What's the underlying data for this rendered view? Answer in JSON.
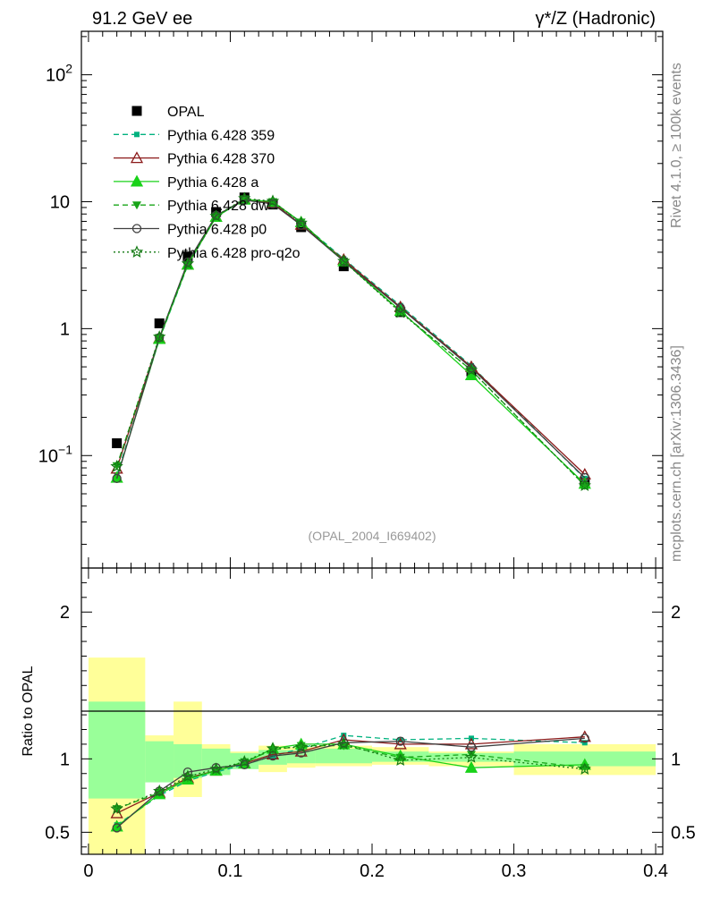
{
  "header": {
    "left_title": "91.2 GeV ee",
    "right_title": "γ*/Z (Hadronic)"
  },
  "side_labels": {
    "rivet": "Rivet 4.1.0, ≥ 100k events",
    "mcplots": "mcplots.cern.ch [arXiv:1306.3436]"
  },
  "chart_data": [
    {
      "type": "scatter",
      "panel": "main",
      "yscale": "log",
      "xlim": [
        -0.005,
        0.405
      ],
      "ylim": [
        0.013,
        220
      ],
      "analysis_label": "(OPAL_2004_I669402)",
      "legend_position": "top-left",
      "y_tick_labels": [
        "10^-1",
        "1",
        "10",
        "10^2"
      ],
      "x": [
        0.02,
        0.05,
        0.07,
        0.09,
        0.11,
        0.13,
        0.15,
        0.18,
        0.22,
        0.27,
        0.35
      ],
      "series": [
        {
          "name": "OPAL",
          "color": "#000000",
          "marker": "square",
          "line": "none",
          "values": [
            0.125,
            1.1,
            3.7,
            8.3,
            10.8,
            9.5,
            6.3,
            3.1,
            1.35,
            0.46,
            0.062
          ]
        },
        {
          "name": "Pythia 6.428 359",
          "color": "#00b27f",
          "marker": "square-small",
          "line": "dashed",
          "values": [
            0.07,
            0.82,
            3.15,
            7.6,
            10.4,
            9.7,
            6.8,
            3.55,
            1.52,
            0.51,
            0.066
          ]
        },
        {
          "name": "Pythia 6.428 370",
          "color": "#8b1a1a",
          "marker": "triangle-open",
          "line": "solid",
          "values": [
            0.079,
            0.84,
            3.2,
            7.6,
            10.5,
            9.8,
            6.6,
            3.5,
            1.48,
            0.5,
            0.071
          ]
        },
        {
          "name": "Pythia 6.428 a",
          "color": "#19d219",
          "marker": "triangle",
          "line": "solid",
          "values": [
            0.067,
            0.83,
            3.2,
            7.6,
            10.4,
            10.0,
            6.9,
            3.4,
            1.38,
            0.43,
            0.06
          ]
        },
        {
          "name": "Pythia 6.428 dw",
          "color": "#19a519",
          "marker": "triangle-down",
          "line": "dashed",
          "values": [
            0.083,
            0.85,
            3.2,
            7.7,
            10.5,
            10.0,
            6.9,
            3.4,
            1.36,
            0.47,
            0.058
          ]
        },
        {
          "name": "Pythia 6.428 p0",
          "color": "#404040",
          "marker": "circle-open",
          "line": "solid",
          "values": [
            0.066,
            0.85,
            3.35,
            7.8,
            10.3,
            9.6,
            6.55,
            3.4,
            1.46,
            0.49,
            0.067
          ]
        },
        {
          "name": "Pythia 6.428 pro-q2o",
          "color": "#137a13",
          "marker": "star",
          "line": "dotted",
          "values": [
            0.082,
            0.86,
            3.25,
            7.7,
            10.6,
            10.1,
            6.8,
            3.4,
            1.34,
            0.47,
            0.058
          ]
        }
      ]
    },
    {
      "type": "line",
      "panel": "ratio",
      "ylabel": "Ratio to OPAL",
      "xlim": [
        -0.005,
        0.405
      ],
      "ylim": [
        0.35,
        2.3
      ],
      "x_tick_labels": [
        "0",
        "0.1",
        "0.2",
        "0.3",
        "0.4"
      ],
      "y_tick_labels": [
        "0.5",
        "1",
        "2"
      ],
      "bands": {
        "bin_edges": [
          0.0,
          0.04,
          0.06,
          0.08,
          0.1,
          0.12,
          0.14,
          0.16,
          0.2,
          0.24,
          0.3,
          0.4
        ],
        "stat": [
          [
            0.73,
            1.39
          ],
          [
            0.84,
            1.12
          ],
          [
            0.87,
            1.1
          ],
          [
            0.89,
            1.07
          ],
          [
            0.93,
            1.04
          ],
          [
            0.96,
            1.06
          ],
          [
            0.97,
            1.06
          ],
          [
            0.97,
            1.07
          ],
          [
            0.98,
            1.05
          ],
          [
            0.98,
            1.04
          ],
          [
            0.95,
            1.05
          ]
        ],
        "total": [
          [
            0.35,
            1.69
          ],
          [
            0.86,
            1.16
          ],
          [
            0.74,
            1.39
          ],
          [
            0.89,
            1.1
          ],
          [
            0.94,
            1.05
          ],
          [
            0.91,
            1.09
          ],
          [
            0.94,
            1.08
          ],
          [
            0.95,
            1.09
          ],
          [
            0.96,
            1.08
          ],
          [
            0.95,
            1.05
          ],
          [
            0.89,
            1.1
          ]
        ]
      },
      "series": [
        {
          "name": "Pythia 6.428 359",
          "values": [
            0.55,
            0.75,
            0.85,
            0.91,
            0.96,
            1.02,
            1.07,
            1.16,
            1.13,
            1.14,
            1.11
          ]
        },
        {
          "name": "Pythia 6.428 370",
          "values": [
            0.63,
            0.77,
            0.87,
            0.92,
            0.97,
            1.03,
            1.05,
            1.13,
            1.1,
            1.1,
            1.15
          ]
        },
        {
          "name": "Pythia 6.428 a",
          "values": [
            0.54,
            0.76,
            0.86,
            0.92,
            0.97,
            1.07,
            1.1,
            1.1,
            1.02,
            0.94,
            0.96
          ]
        },
        {
          "name": "Pythia 6.428 dw",
          "values": [
            0.66,
            0.77,
            0.87,
            0.92,
            0.98,
            1.06,
            1.09,
            1.09,
            1.01,
            1.03,
            0.94
          ]
        },
        {
          "name": "Pythia 6.428 p0",
          "values": [
            0.53,
            0.78,
            0.91,
            0.94,
            0.96,
            1.02,
            1.04,
            1.11,
            1.12,
            1.08,
            1.14
          ]
        },
        {
          "name": "Pythia 6.428 pro-q2o",
          "values": [
            0.66,
            0.78,
            0.88,
            0.93,
            0.98,
            1.07,
            1.08,
            1.1,
            0.99,
            1.01,
            0.93
          ]
        }
      ]
    }
  ]
}
